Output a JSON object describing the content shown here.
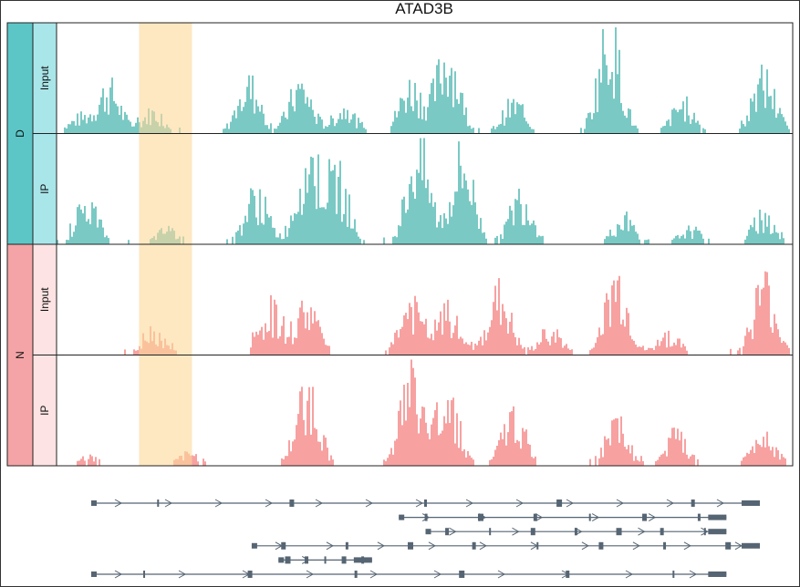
{
  "chart_data": {
    "type": "area",
    "title": "ATAD3B",
    "highlight_region": {
      "start_fraction": 0.112,
      "end_fraction": 0.184
    },
    "groups": [
      {
        "label": "D",
        "color": "#5cc6c7",
        "tracks": [
          {
            "label": "Input",
            "color": "#7ac9c4",
            "label_bg": "#a9e6ea",
            "peaks": [
              [
                0.03,
                0.15
              ],
              [
                0.07,
                0.45
              ],
              [
                0.13,
                0.22
              ],
              [
                0.26,
                0.5
              ],
              [
                0.33,
                0.48
              ],
              [
                0.39,
                0.25
              ],
              [
                0.48,
                0.48
              ],
              [
                0.53,
                0.8
              ],
              [
                0.62,
                0.3
              ],
              [
                0.75,
                1.0
              ],
              [
                0.85,
                0.3
              ],
              [
                0.96,
                0.55
              ]
            ]
          },
          {
            "label": "IP",
            "color": "#7ac9c4",
            "label_bg": "#a9e6ea",
            "peaks": [
              [
                0.04,
                0.42
              ],
              [
                0.15,
                0.15
              ],
              [
                0.27,
                0.5
              ],
              [
                0.34,
                0.88
              ],
              [
                0.38,
                0.65
              ],
              [
                0.49,
                0.95
              ],
              [
                0.55,
                0.85
              ],
              [
                0.63,
                0.5
              ],
              [
                0.77,
                0.25
              ],
              [
                0.86,
                0.15
              ],
              [
                0.96,
                0.3
              ]
            ]
          }
        ]
      },
      {
        "label": "N",
        "color": "#f4a4a6",
        "tracks": [
          {
            "label": "Input",
            "color": "#f7a1a1",
            "label_bg": "#fde3e3",
            "peaks": [
              [
                0.13,
                0.25
              ],
              [
                0.29,
                0.45
              ],
              [
                0.34,
                0.5
              ],
              [
                0.48,
                0.5
              ],
              [
                0.53,
                0.42
              ],
              [
                0.6,
                0.6
              ],
              [
                0.67,
                0.25
              ],
              [
                0.76,
                0.75
              ],
              [
                0.83,
                0.2
              ],
              [
                0.96,
                0.7
              ]
            ]
          },
          {
            "label": "IP",
            "color": "#f7a1a1",
            "label_bg": "#fde3e3",
            "peaks": [
              [
                0.04,
                0.1
              ],
              [
                0.18,
                0.12
              ],
              [
                0.34,
                0.75
              ],
              [
                0.48,
                0.85
              ],
              [
                0.53,
                0.7
              ],
              [
                0.62,
                0.5
              ],
              [
                0.76,
                0.4
              ],
              [
                0.84,
                0.3
              ],
              [
                0.96,
                0.35
              ]
            ]
          }
        ]
      }
    ],
    "transcripts": [
      {
        "start": 0.0,
        "end": 1.0
      },
      {
        "start": 0.46,
        "end": 0.95
      },
      {
        "start": 0.5,
        "end": 0.95
      },
      {
        "start": 0.24,
        "end": 1.0
      },
      {
        "start": 0.28,
        "end": 0.42
      },
      {
        "start": 0.0,
        "end": 0.95
      }
    ]
  }
}
